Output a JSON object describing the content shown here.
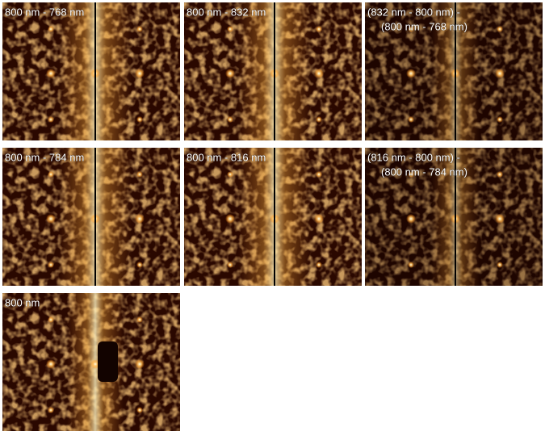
{
  "panels": [
    {
      "label": [
        "800 nm - 768 nm"
      ]
    },
    {
      "label": [
        "800 nm - 832 nm"
      ]
    },
    {
      "label": [
        "(832 nm - 800 nm) -",
        "(800 nm - 768 nm)"
      ]
    },
    {
      "label": [
        "800 nm - 784 nm"
      ]
    },
    {
      "label": [
        "800 nm - 816 nm"
      ]
    },
    {
      "label": [
        "(816 nm - 800 nm) -",
        "(800 nm - 784 nm)"
      ]
    },
    {
      "label": [
        "800 nm"
      ]
    }
  ]
}
